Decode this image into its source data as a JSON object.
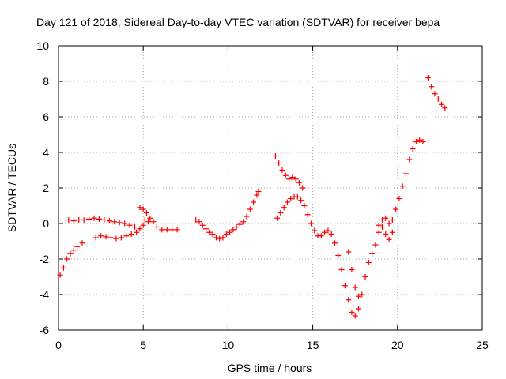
{
  "chart_data": {
    "type": "scatter",
    "title": "Day 121 of 2018, Sidereal Day-to-day VTEC variation (SDTVAR) for receiver bepa",
    "xlabel": "GPS time / hours",
    "ylabel": "SDTVAR / TECUs",
    "xlim": [
      0,
      25
    ],
    "ylim": [
      -6,
      10
    ],
    "xticks": [
      "0",
      "5",
      "10",
      "15",
      "20",
      "25"
    ],
    "yticks": [
      "-6",
      "-4",
      "-2",
      "0",
      "2",
      "4",
      "6",
      "8",
      "10"
    ],
    "grid": true,
    "marker": "plus",
    "color": "#ff0000",
    "series": [
      {
        "values": [
          [
            0.1,
            -2.9
          ],
          [
            0.3,
            -2.5
          ],
          [
            0.5,
            -2.0
          ],
          [
            0.7,
            -1.7
          ],
          [
            0.9,
            -1.5
          ],
          [
            1.1,
            -1.3
          ],
          [
            1.4,
            -1.1
          ],
          [
            0.6,
            0.2
          ],
          [
            0.9,
            0.15
          ],
          [
            1.2,
            0.2
          ],
          [
            1.5,
            0.2
          ],
          [
            1.8,
            0.25
          ],
          [
            2.1,
            0.3
          ],
          [
            2.4,
            0.25
          ],
          [
            2.7,
            0.2
          ],
          [
            3.0,
            0.15
          ],
          [
            3.3,
            0.1
          ],
          [
            3.6,
            0.05
          ],
          [
            3.9,
            0.0
          ],
          [
            4.2,
            -0.1
          ],
          [
            4.5,
            -0.2
          ],
          [
            2.2,
            -0.8
          ],
          [
            2.5,
            -0.7
          ],
          [
            2.8,
            -0.75
          ],
          [
            3.1,
            -0.8
          ],
          [
            3.4,
            -0.85
          ],
          [
            3.7,
            -0.8
          ],
          [
            4.0,
            -0.7
          ],
          [
            4.3,
            -0.6
          ],
          [
            4.6,
            -0.5
          ],
          [
            4.8,
            -0.3
          ],
          [
            5.0,
            -0.1
          ],
          [
            5.1,
            0.2
          ],
          [
            5.3,
            0.1
          ],
          [
            4.8,
            0.9
          ],
          [
            5.0,
            0.8
          ],
          [
            5.2,
            0.6
          ],
          [
            5.4,
            0.3
          ],
          [
            5.6,
            0.1
          ],
          [
            5.8,
            -0.2
          ],
          [
            6.1,
            -0.35
          ],
          [
            6.4,
            -0.35
          ],
          [
            6.7,
            -0.35
          ],
          [
            7.0,
            -0.35
          ]
        ]
      },
      {
        "values": [
          [
            8.1,
            0.2
          ],
          [
            8.3,
            0.1
          ],
          [
            8.5,
            -0.1
          ],
          [
            8.7,
            -0.3
          ],
          [
            8.9,
            -0.5
          ],
          [
            9.1,
            -0.6
          ],
          [
            9.3,
            -0.8
          ],
          [
            9.5,
            -0.85
          ],
          [
            9.7,
            -0.8
          ],
          [
            9.9,
            -0.6
          ],
          [
            10.1,
            -0.5
          ],
          [
            10.3,
            -0.35
          ],
          [
            10.5,
            -0.2
          ],
          [
            10.7,
            -0.05
          ],
          [
            10.9,
            0.1
          ],
          [
            11.1,
            0.4
          ],
          [
            11.3,
            0.8
          ],
          [
            11.5,
            1.2
          ],
          [
            11.7,
            1.6
          ],
          [
            11.8,
            1.8
          ]
        ]
      },
      {
        "values": [
          [
            12.8,
            3.8
          ],
          [
            13.0,
            3.4
          ],
          [
            13.2,
            3.0
          ],
          [
            13.4,
            2.7
          ],
          [
            13.6,
            2.5
          ],
          [
            13.8,
            2.6
          ],
          [
            14.0,
            2.5
          ],
          [
            14.2,
            2.3
          ],
          [
            14.4,
            2.0
          ],
          [
            12.9,
            0.3
          ],
          [
            13.1,
            0.6
          ],
          [
            13.3,
            0.9
          ],
          [
            13.5,
            1.2
          ],
          [
            13.7,
            1.4
          ],
          [
            13.9,
            1.5
          ],
          [
            14.1,
            1.5
          ],
          [
            14.3,
            1.3
          ],
          [
            14.5,
            1.0
          ],
          [
            14.7,
            0.5
          ],
          [
            14.9,
            0.0
          ],
          [
            15.1,
            -0.4
          ],
          [
            15.3,
            -0.7
          ],
          [
            15.5,
            -0.7
          ],
          [
            15.7,
            -0.5
          ],
          [
            15.9,
            -0.4
          ],
          [
            16.1,
            -0.6
          ],
          [
            16.3,
            -1.1
          ],
          [
            16.5,
            -1.8
          ],
          [
            16.7,
            -2.6
          ],
          [
            16.9,
            -3.5
          ],
          [
            17.1,
            -4.3
          ],
          [
            17.3,
            -5.0
          ],
          [
            17.5,
            -5.2
          ],
          [
            17.7,
            -4.8
          ],
          [
            17.9,
            -4.0
          ],
          [
            18.1,
            -3.0
          ],
          [
            18.3,
            -2.2
          ],
          [
            18.5,
            -1.7
          ],
          [
            18.7,
            -1.2
          ],
          [
            18.9,
            -0.5
          ],
          [
            19.1,
            0.2
          ],
          [
            19.3,
            0.3
          ],
          [
            19.5,
            0.0
          ],
          [
            19.7,
            0.2
          ],
          [
            19.9,
            0.8
          ],
          [
            20.1,
            1.4
          ],
          [
            20.3,
            2.1
          ],
          [
            20.5,
            2.8
          ],
          [
            20.7,
            3.6
          ],
          [
            20.9,
            4.2
          ],
          [
            21.1,
            4.6
          ],
          [
            21.3,
            4.7
          ],
          [
            21.5,
            4.6
          ],
          [
            17.1,
            -1.6
          ],
          [
            17.3,
            -2.6
          ],
          [
            17.5,
            -3.6
          ],
          [
            17.7,
            -4.1
          ],
          [
            18.9,
            -0.1
          ],
          [
            19.1,
            -0.2
          ],
          [
            19.3,
            -0.6
          ],
          [
            19.5,
            -0.9
          ],
          [
            19.7,
            -0.5
          ]
        ]
      },
      {
        "values": [
          [
            21.8,
            8.2
          ],
          [
            22.0,
            7.7
          ],
          [
            22.2,
            7.3
          ],
          [
            22.4,
            7.0
          ],
          [
            22.6,
            6.7
          ],
          [
            22.8,
            6.5
          ]
        ]
      }
    ]
  }
}
